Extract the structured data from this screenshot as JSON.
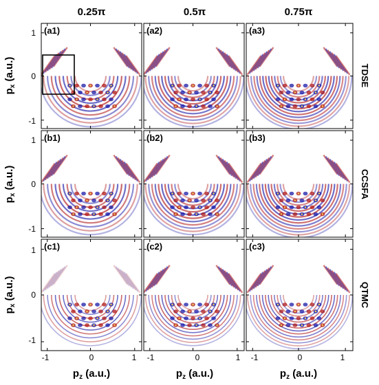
{
  "columns": [
    {
      "label": "0.25π"
    },
    {
      "label": "0.5π"
    },
    {
      "label": "0.75π"
    }
  ],
  "rows": [
    {
      "label": "TDSE"
    },
    {
      "label": "CCSFA"
    },
    {
      "label": "QTMC"
    }
  ],
  "panels": [
    {
      "tag": "(a1)"
    },
    {
      "tag": "(a2)"
    },
    {
      "tag": "(a3)"
    },
    {
      "tag": "(b1)"
    },
    {
      "tag": "(b2)"
    },
    {
      "tag": "(b3)"
    },
    {
      "tag": "(c1)"
    },
    {
      "tag": "(c2)"
    },
    {
      "tag": "(c3)"
    }
  ],
  "axes": {
    "ylabel_main": "p",
    "ylabel_sub": "x",
    "ylabel_unit": " (a.u.)",
    "xlabel_main": "p",
    "xlabel_sub": "z",
    "xlabel_unit": " (a.u.)",
    "xticks": [
      "-1",
      "0",
      "1"
    ],
    "yticks": [
      "1",
      "0",
      "-1"
    ]
  },
  "colors": {
    "blue": "#1a1aa8",
    "red": "#b01818",
    "yellow": "#f0d050",
    "frame": "#000000"
  }
}
